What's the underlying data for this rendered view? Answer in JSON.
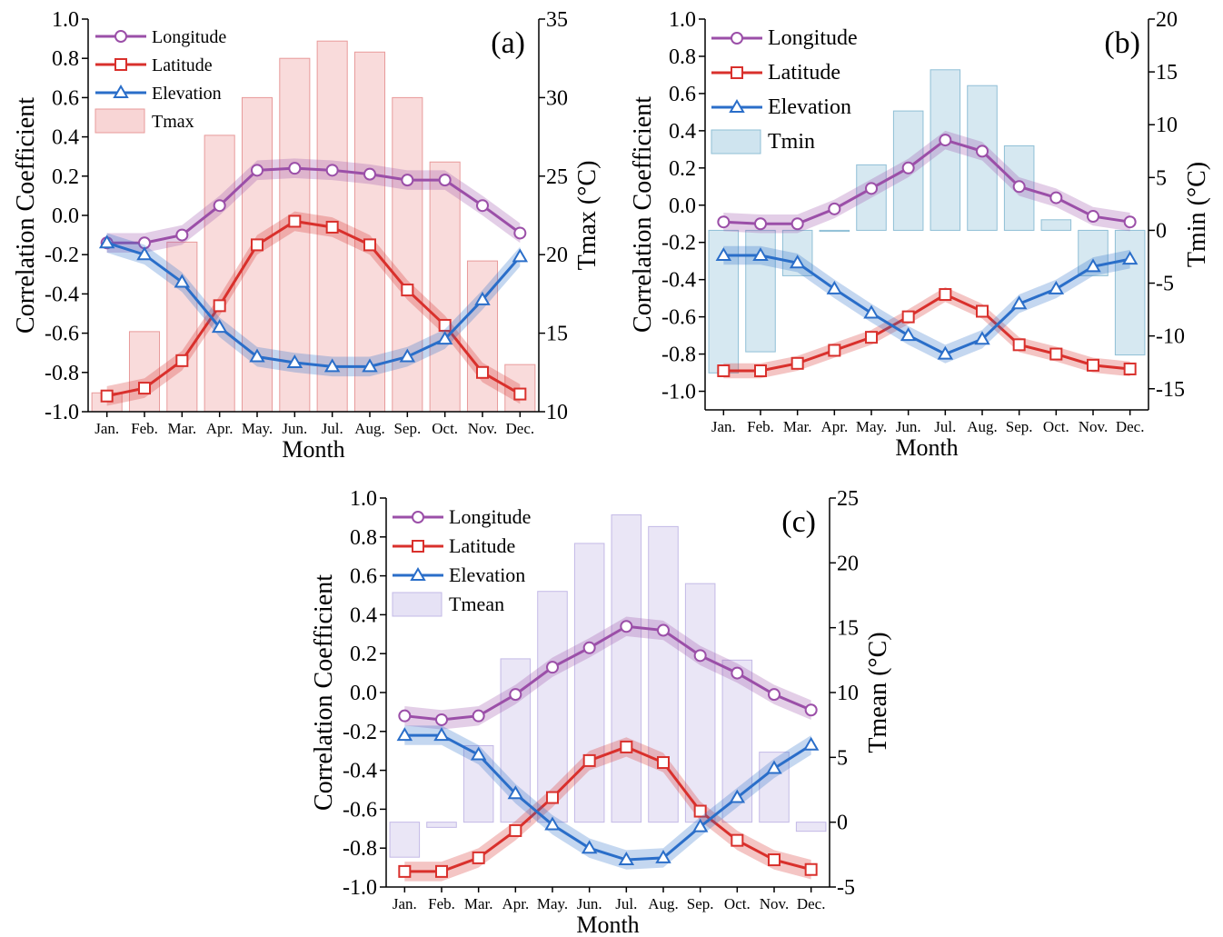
{
  "chart_data": [
    {
      "type": "bar+line",
      "panel_label": "(a)",
      "categories": [
        "Jan.",
        "Feb.",
        "Mar.",
        "Apr.",
        "May.",
        "Jun.",
        "Jul.",
        "Aug.",
        "Sep.",
        "Oct.",
        "Nov.",
        "Dec."
      ],
      "xlabel": "Month",
      "ylabel": "Correlation Coefficient",
      "ylim": [
        -1.0,
        1.0
      ],
      "yticks": [
        "1.0",
        "0.8",
        "0.6",
        "0.4",
        "0.2",
        "0.0",
        "-0.2",
        "-0.4",
        "-0.6",
        "-0.8",
        "-1.0"
      ],
      "y2label": "Tmax (°C)",
      "y2lim": [
        10,
        35
      ],
      "y2ticks": [
        "35",
        "30",
        "25",
        "20",
        "15",
        "10"
      ],
      "bar_series": {
        "name": "Tmax",
        "color": "#f8d5d5",
        "edge": "#e89a9a",
        "values": [
          11.2,
          15.1,
          20.8,
          27.6,
          30.0,
          32.5,
          33.6,
          32.9,
          30.0,
          25.9,
          19.6,
          13.0
        ]
      },
      "series": [
        {
          "name": "Longitude",
          "color": "#9b4fa8",
          "marker": "circle",
          "band": 0.05,
          "values": [
            -0.14,
            -0.14,
            -0.1,
            0.05,
            0.23,
            0.24,
            0.23,
            0.21,
            0.18,
            0.18,
            0.05,
            -0.09
          ]
        },
        {
          "name": "Latitude",
          "color": "#d9302c",
          "marker": "square",
          "band": 0.05,
          "values": [
            -0.92,
            -0.88,
            -0.74,
            -0.46,
            -0.15,
            -0.03,
            -0.06,
            -0.15,
            -0.38,
            -0.56,
            -0.8,
            -0.91
          ]
        },
        {
          "name": "Elevation",
          "color": "#2a6ec9",
          "marker": "triangle",
          "band": 0.05,
          "values": [
            -0.14,
            -0.2,
            -0.34,
            -0.57,
            -0.72,
            -0.75,
            -0.77,
            -0.77,
            -0.72,
            -0.63,
            -0.43,
            -0.21
          ]
        }
      ],
      "legend": [
        "Longitude",
        "Latitude",
        "Elevation",
        "Tmax"
      ],
      "legend_position": "top-left"
    },
    {
      "type": "bar+line",
      "panel_label": "(b)",
      "categories": [
        "Jan.",
        "Feb.",
        "Mar.",
        "Apr.",
        "May.",
        "Jun.",
        "Jul.",
        "Aug.",
        "Sep.",
        "Oct.",
        "Nov.",
        "Dec."
      ],
      "xlabel": "Month",
      "ylabel": "Correlation Coefficient",
      "ylim": [
        -1.1,
        1.0
      ],
      "yticks": [
        "1.0",
        "0.8",
        "0.6",
        "0.4",
        "0.2",
        "0.0",
        "-0.2",
        "-0.4",
        "-0.6",
        "-0.8",
        "-1.0"
      ],
      "y2label": "Tmin (°C)",
      "y2lim": [
        -17,
        20
      ],
      "y2ticks": [
        "20",
        "15",
        "10",
        "5",
        "0",
        "-5",
        "-10",
        "-15"
      ],
      "bar_series": {
        "name": "Tmin",
        "color": "#cfe4ef",
        "edge": "#8fbfd6",
        "values": [
          -13.5,
          -11.5,
          -4.3,
          -0.1,
          6.2,
          11.3,
          15.2,
          13.7,
          8.0,
          1.0,
          -4.3,
          -11.8
        ]
      },
      "series": [
        {
          "name": "Longitude",
          "color": "#9b4fa8",
          "marker": "circle",
          "band": 0.05,
          "values": [
            -0.09,
            -0.1,
            -0.1,
            -0.02,
            0.09,
            0.2,
            0.35,
            0.29,
            0.1,
            0.04,
            -0.06,
            -0.09
          ]
        },
        {
          "name": "Latitude",
          "color": "#d9302c",
          "marker": "square",
          "band": 0.04,
          "values": [
            -0.89,
            -0.89,
            -0.85,
            -0.78,
            -0.71,
            -0.6,
            -0.48,
            -0.57,
            -0.75,
            -0.8,
            -0.86,
            -0.88
          ]
        },
        {
          "name": "Elevation",
          "color": "#2a6ec9",
          "marker": "triangle",
          "band": 0.05,
          "values": [
            -0.27,
            -0.27,
            -0.31,
            -0.45,
            -0.58,
            -0.7,
            -0.8,
            -0.72,
            -0.53,
            -0.45,
            -0.33,
            -0.29
          ]
        }
      ],
      "legend": [
        "Longitude",
        "Latitude",
        "Elevation",
        "Tmin"
      ],
      "legend_position": "top-left"
    },
    {
      "type": "bar+line",
      "panel_label": "(c)",
      "categories": [
        "Jan.",
        "Feb.",
        "Mar.",
        "Apr.",
        "May.",
        "Jun.",
        "Jul.",
        "Aug.",
        "Sep.",
        "Oct.",
        "Nov.",
        "Dec."
      ],
      "xlabel": "Month",
      "ylabel": "Correlation Coefficient",
      "ylim": [
        -1.0,
        1.0
      ],
      "yticks": [
        "1.0",
        "0.8",
        "0.6",
        "0.4",
        "0.2",
        "0.0",
        "-0.2",
        "-0.4",
        "-0.6",
        "-0.8",
        "-1.0"
      ],
      "y2label": "Tmean (°C)",
      "y2lim": [
        -5,
        25
      ],
      "y2ticks": [
        "25",
        "20",
        "15",
        "10",
        "5",
        "0",
        "-5"
      ],
      "bar_series": {
        "name": "Tmean",
        "color": "#e6e2f5",
        "edge": "#c3b9e6",
        "values": [
          -2.7,
          -0.4,
          5.9,
          12.6,
          17.8,
          21.5,
          23.7,
          22.8,
          18.4,
          12.5,
          5.4,
          -0.7
        ]
      },
      "series": [
        {
          "name": "Longitude",
          "color": "#9b4fa8",
          "marker": "circle",
          "band": 0.05,
          "values": [
            -0.12,
            -0.14,
            -0.12,
            -0.01,
            0.13,
            0.23,
            0.34,
            0.32,
            0.19,
            0.1,
            -0.01,
            -0.09
          ]
        },
        {
          "name": "Latitude",
          "color": "#d9302c",
          "marker": "square",
          "band": 0.05,
          "values": [
            -0.92,
            -0.92,
            -0.85,
            -0.71,
            -0.54,
            -0.35,
            -0.28,
            -0.36,
            -0.61,
            -0.76,
            -0.86,
            -0.91
          ]
        },
        {
          "name": "Elevation",
          "color": "#2a6ec9",
          "marker": "triangle",
          "band": 0.05,
          "values": [
            -0.22,
            -0.22,
            -0.32,
            -0.52,
            -0.68,
            -0.8,
            -0.86,
            -0.85,
            -0.69,
            -0.54,
            -0.39,
            -0.27
          ]
        }
      ],
      "legend": [
        "Longitude",
        "Latitude",
        "Elevation",
        "Tmean"
      ],
      "legend_position": "top-left"
    }
  ]
}
